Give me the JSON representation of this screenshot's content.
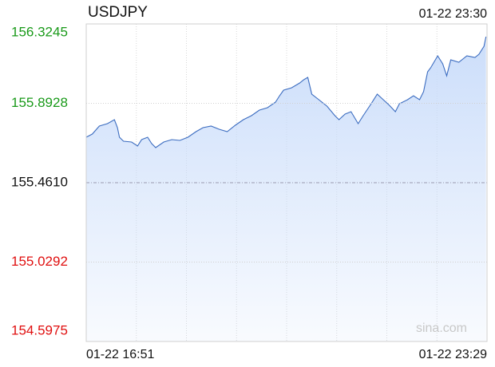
{
  "chart_data": {
    "type": "area",
    "title": "USDJPY",
    "timestamp": "01-22 23:30",
    "watermark": "sina.com",
    "x_labels": [
      "01-22 16:51",
      "01-22 23:29"
    ],
    "x": [
      0,
      6,
      13,
      21,
      28,
      31,
      33,
      37,
      45,
      51,
      55,
      61,
      65,
      69,
      77,
      85,
      93,
      101,
      109,
      116,
      124,
      132,
      140,
      148,
      156,
      164,
      172,
      180,
      188,
      192,
      196,
      204,
      212,
      216,
      220,
      224,
      231,
      239,
      247,
      251,
      257,
      263,
      270,
      275,
      283,
      289,
      295,
      301,
      307,
      311,
      319,
      325,
      331,
      335,
      339,
      342,
      349,
      354,
      358,
      362,
      370,
      378,
      386,
      390,
      395,
      397
    ],
    "values": [
      155.7084,
      155.7257,
      155.7691,
      155.7821,
      155.8038,
      155.7604,
      155.7084,
      155.6867,
      155.6823,
      155.6606,
      155.6953,
      155.7084,
      155.6736,
      155.652,
      155.6823,
      155.6953,
      155.691,
      155.7084,
      155.7387,
      155.7604,
      155.7691,
      155.7518,
      155.7387,
      155.7734,
      155.8038,
      155.8255,
      155.8559,
      155.8689,
      155.8993,
      155.934,
      155.9644,
      155.9774,
      156.0034,
      156.0208,
      156.0338,
      155.9427,
      155.9123,
      155.8776,
      155.8255,
      155.8038,
      155.8342,
      155.8472,
      155.7821,
      155.8255,
      155.8906,
      155.9427,
      155.9123,
      155.8819,
      155.8472,
      155.8906,
      155.9123,
      155.934,
      155.9123,
      155.9557,
      156.0642,
      156.0859,
      156.1509,
      156.1075,
      156.0425,
      156.1292,
      156.1162,
      156.1509,
      156.1423,
      156.1596,
      156.203,
      156.2551
    ],
    "xlim": [
      0,
      398
    ],
    "ylim": [
      154.5975,
      156.3245
    ],
    "yticks": [
      156.3245,
      155.8928,
      {
        "value": 155.461,
        "label": "155.4610"
      },
      155.0292,
      154.5975
    ],
    "color": "#3b6cc0",
    "fill_color": "#c9dcfa",
    "up_color": "#1a9a1a",
    "down_color": "#e01010",
    "grid": true
  }
}
